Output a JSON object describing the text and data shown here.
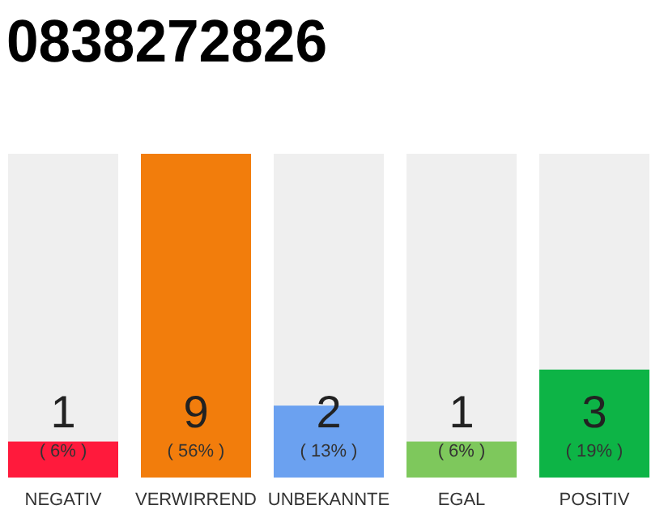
{
  "chart_data": {
    "type": "bar",
    "title": "0838272826",
    "categories": [
      "NEGATIV",
      "VERWIRREND",
      "UNBEKANNTE",
      "EGAL",
      "POSITIV"
    ],
    "values": [
      1,
      9,
      2,
      1,
      3
    ],
    "colors": [
      "#ff1a3c",
      "#f27d0c",
      "#6ba1f0",
      "#7ec85c",
      "#0db446"
    ],
    "data_labels": true,
    "annotations": [
      "( 6% )",
      "( 56% )",
      "( 13% )",
      "( 6% )",
      "( 19% )"
    ]
  }
}
